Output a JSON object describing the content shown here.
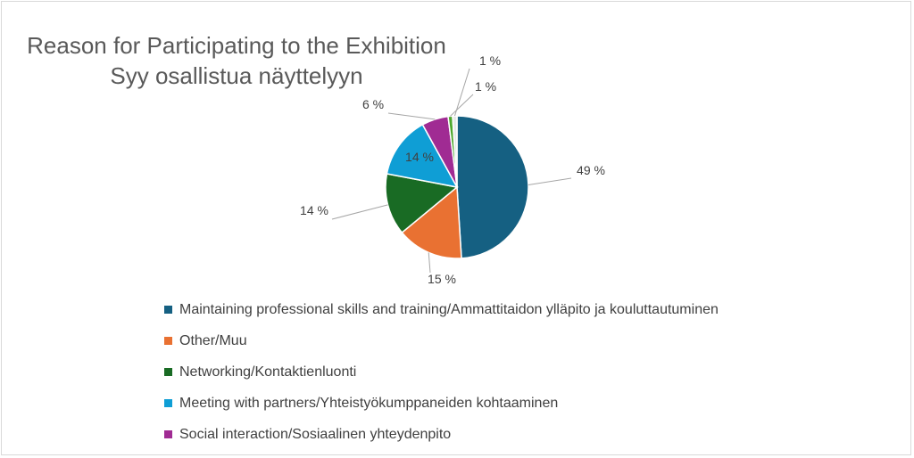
{
  "chart_data": {
    "type": "pie",
    "title_lines": [
      "Reason for Participating to the Exhibition",
      "Syy osallistua näyttelyyn"
    ],
    "slices": [
      {
        "label": "Maintaining professional skills and training/Ammattitaidon ylläpito ja kouluttautuminen",
        "value": 49,
        "data_label": "49 %",
        "color": "#156082"
      },
      {
        "label": "Other/Muu",
        "value": 15,
        "data_label": "15 %",
        "color": "#E97132"
      },
      {
        "label": "Networking/Kontaktienluonti",
        "value": 14,
        "data_label": "14 %",
        "color": "#196B24"
      },
      {
        "label": "Meeting with partners/Yhteistyökumppaneiden kohtaaminen",
        "value": 14,
        "data_label": "14 %",
        "color": "#0F9ED5"
      },
      {
        "label": "Social interaction/Sosiaalinen yhteydenpito",
        "value": 6,
        "data_label": "6 %",
        "color": "#A02B93"
      },
      {
        "label": "",
        "value": 1,
        "data_label": "1 %",
        "color": "#4EA72E"
      },
      {
        "label": "",
        "value": 1,
        "data_label": "1 %",
        "color": "#E8E8E8"
      }
    ],
    "legend_position": "bottom"
  }
}
